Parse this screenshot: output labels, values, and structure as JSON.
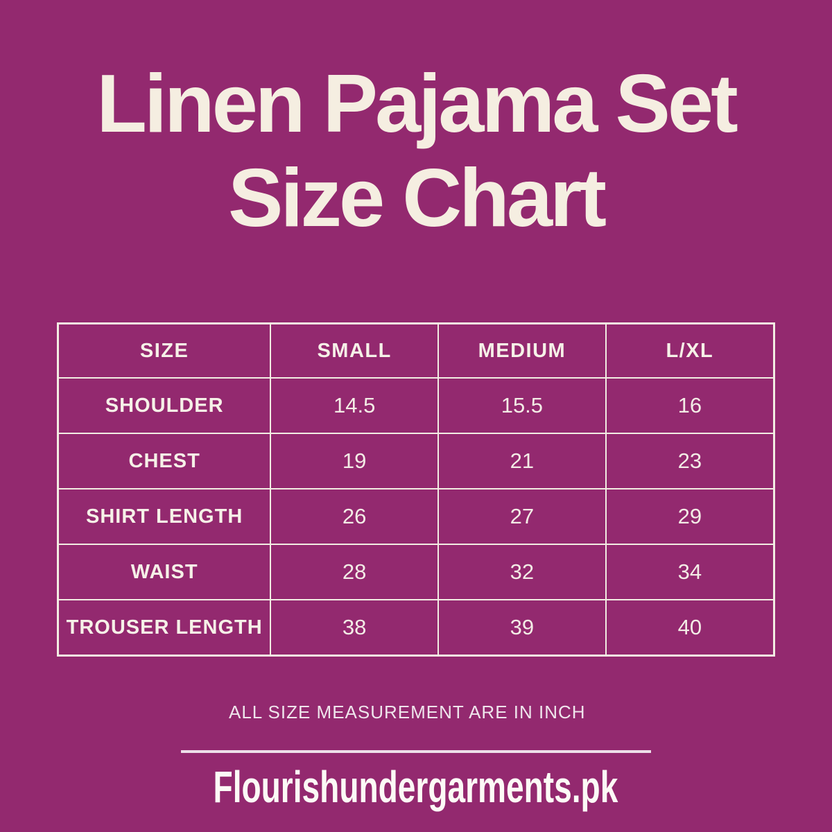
{
  "page": {
    "background_color": "#93296F",
    "title_color": "#F5EEE1",
    "table_border_color": "#F2EDE3",
    "footer_color": "#FCFAF6"
  },
  "title": {
    "line1": "Linen Pajama Set",
    "line2": "Size Chart"
  },
  "size_chart": {
    "columns": [
      "SIZE",
      "SMALL",
      "MEDIUM",
      "L/XL"
    ],
    "rows": [
      {
        "label": "SHOULDER",
        "values": [
          "14.5",
          "15.5",
          "16"
        ]
      },
      {
        "label": "CHEST",
        "values": [
          "19",
          "21",
          "23"
        ]
      },
      {
        "label": "SHIRT LENGTH",
        "values": [
          "26",
          "27",
          "29"
        ]
      },
      {
        "label": "WAIST",
        "values": [
          "28",
          "32",
          "34"
        ]
      },
      {
        "label": "TROUSER LENGTH",
        "values": [
          "38",
          "39",
          "40"
        ]
      }
    ]
  },
  "note": "ALL SIZE MEASUREMENT ARE IN INCH",
  "footer": {
    "brand": "Flourishundergarments.pk"
  },
  "chart_data": {
    "type": "table",
    "title": "Linen Pajama Set Size Chart",
    "columns": [
      "SIZE",
      "SMALL",
      "MEDIUM",
      "L/XL"
    ],
    "rows": [
      [
        "SHOULDER",
        14.5,
        15.5,
        16
      ],
      [
        "CHEST",
        19,
        21,
        23
      ],
      [
        "SHIRT LENGTH",
        26,
        27,
        29
      ],
      [
        "WAIST",
        28,
        32,
        34
      ],
      [
        "TROUSER LENGTH",
        38,
        39,
        40
      ]
    ],
    "units": "inch",
    "note": "ALL SIZE MEASUREMENT ARE IN INCH"
  }
}
